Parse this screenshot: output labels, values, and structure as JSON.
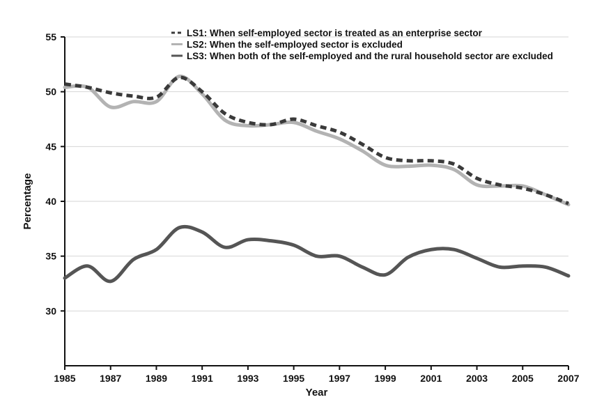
{
  "chart_data": {
    "type": "line",
    "title": "",
    "xlabel": "Year",
    "ylabel": "Percentage",
    "xlim": [
      1985,
      2007
    ],
    "ylim": [
      25,
      55
    ],
    "grid": true,
    "legend_position": "top-right",
    "x_ticks": [
      "1985",
      "1987",
      "1989",
      "1991",
      "1993",
      "1995",
      "1997",
      "1999",
      "2001",
      "2003",
      "2005",
      "2007"
    ],
    "y_ticks": [
      "30",
      "35",
      "40",
      "45",
      "50",
      "55"
    ],
    "x": [
      1985,
      1986,
      1987,
      1988,
      1989,
      1990,
      1991,
      1992,
      1993,
      1994,
      1995,
      1996,
      1997,
      1998,
      1999,
      2000,
      2001,
      2002,
      2003,
      2004,
      2005,
      2006,
      2007
    ],
    "series": [
      {
        "name": "LS1: When self-employed sector is treated as an enterprise sector",
        "color": "#3a3a3a",
        "style": "dashed",
        "values": [
          50.7,
          50.4,
          49.9,
          49.6,
          49.5,
          51.3,
          50.0,
          48.0,
          47.2,
          47.0,
          47.5,
          46.9,
          46.3,
          45.2,
          44.0,
          43.7,
          43.7,
          43.4,
          42.1,
          41.5,
          41.2,
          40.6,
          39.8
        ]
      },
      {
        "name": "LS2: When the self-employed sector is excluded",
        "color": "#b3b3b3",
        "style": "solid",
        "values": [
          50.4,
          50.4,
          48.6,
          49.1,
          49.1,
          51.4,
          49.8,
          47.4,
          46.9,
          47.0,
          47.2,
          46.4,
          45.7,
          44.6,
          43.3,
          43.2,
          43.3,
          42.9,
          41.5,
          41.4,
          41.4,
          40.6,
          39.7
        ]
      },
      {
        "name": "LS3: When both of the self-employed and the rural household sector are excluded",
        "color": "#555555",
        "style": "solid",
        "values": [
          33.0,
          34.1,
          32.7,
          34.7,
          35.6,
          37.6,
          37.2,
          35.8,
          36.5,
          36.4,
          36.0,
          35.0,
          35.0,
          34.0,
          33.3,
          34.9,
          35.6,
          35.6,
          34.8,
          34.0,
          34.1,
          34.0,
          33.2
        ]
      }
    ]
  }
}
